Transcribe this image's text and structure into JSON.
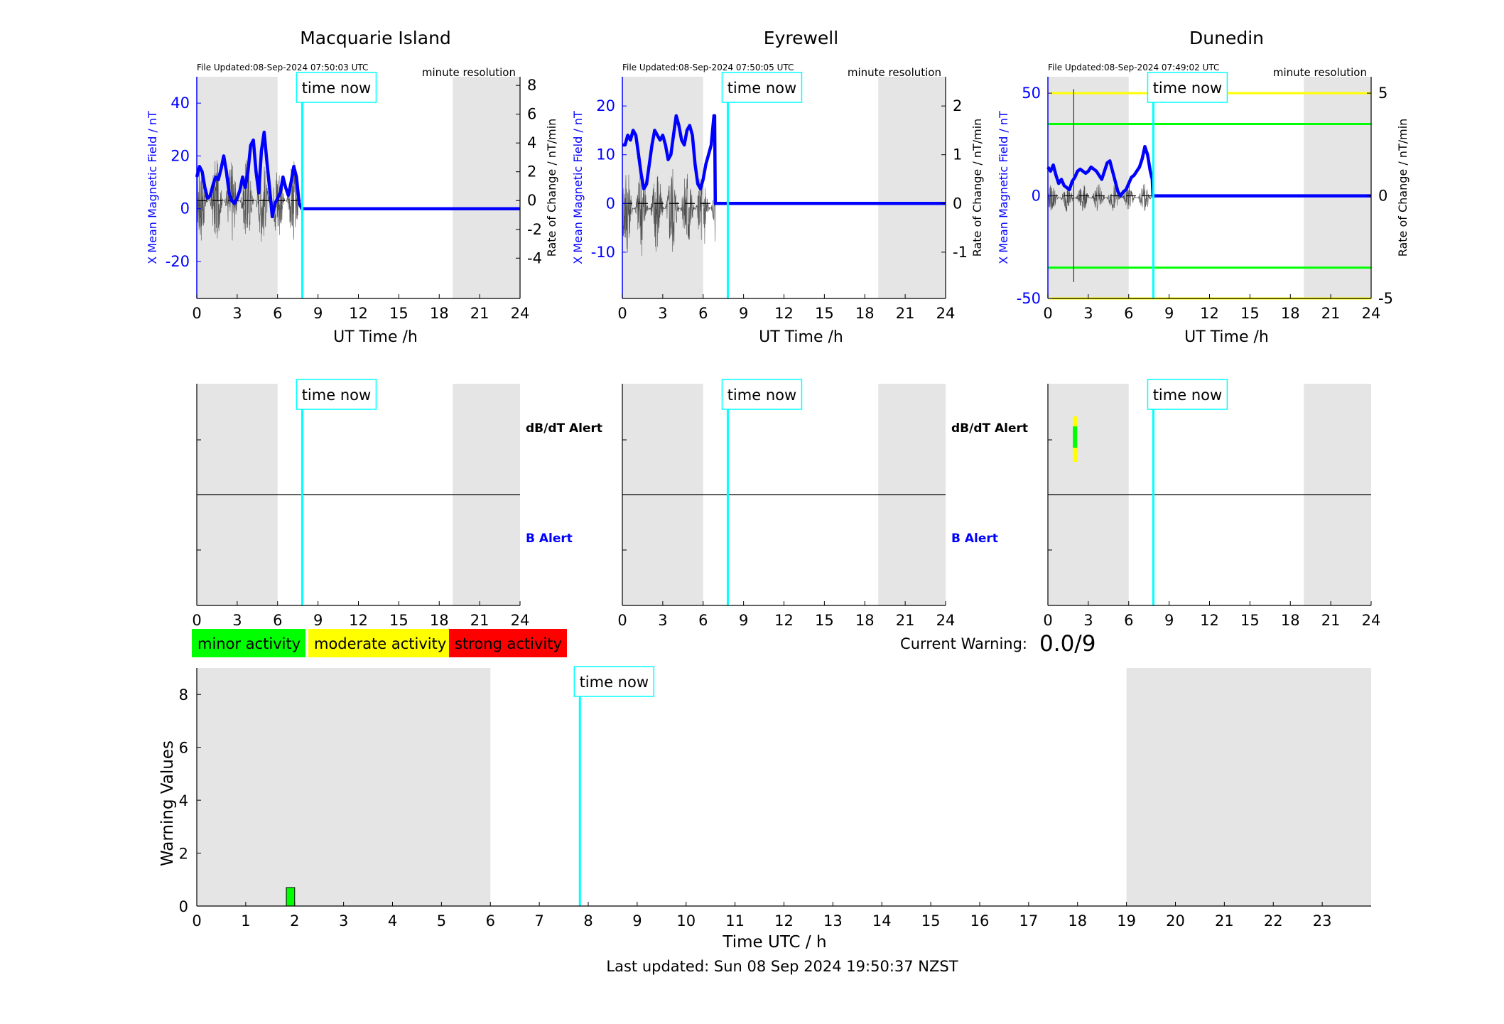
{
  "colors": {
    "night_shading": "#e5e5e5",
    "time_now_line": "#00ffff",
    "magnetic_field_line": "#0000ff",
    "rate_of_change_line": "#000000",
    "minor": "#00ff00",
    "moderate": "#ffff00",
    "strong": "#ff0000"
  },
  "labels": {
    "time_now": "time now",
    "resolution": "minute resolution",
    "x_axis_station": "UT Time /h",
    "y_left": "X Mean Magnetic Field / nT",
    "y_right": "Rate of Change / nT/min",
    "dbdt_alert": "dB/dT Alert",
    "b_alert": "B Alert"
  },
  "stations": [
    {
      "name": "Macquarie Island",
      "file_updated": "File Updated:08-Sep-2024 07:50:03 UTC",
      "show_alert_labels": true
    },
    {
      "name": "Eyrewell",
      "file_updated": "File Updated:08-Sep-2024 07:50:05 UTC",
      "show_alert_labels": true
    },
    {
      "name": "Dunedin",
      "file_updated": "File Updated:08-Sep-2024 07:49:02 UTC",
      "show_alert_labels": false
    }
  ],
  "legend": {
    "minor": "minor activity",
    "moderate": "moderate activity",
    "strong": "strong activity"
  },
  "current_warning": {
    "label": "Current Warning:",
    "value": "0.0/9"
  },
  "footer": {
    "last_updated": "Last updated: Sun 08 Sep 2024 19:50:37 NZST"
  },
  "chart_data": [
    {
      "type": "line",
      "title": "Macquarie Island",
      "xlabel": "UT Time /h",
      "ylabel": "X Mean Magnetic Field / nT",
      "ylabel_right": "Rate of Change / nT/min",
      "xlim": [
        0,
        24
      ],
      "ylim": [
        -34,
        50
      ],
      "ylim_right": [
        -6.8,
        8.6
      ],
      "x_ticks": [
        0,
        3,
        6,
        9,
        12,
        15,
        18,
        21,
        24
      ],
      "y_ticks": [
        -20,
        0,
        20,
        40
      ],
      "y_ticks_right": [
        -4,
        -2,
        0,
        2,
        4,
        6,
        8
      ],
      "time_now": 7.83,
      "night_bands": [
        [
          0,
          6
        ],
        [
          19,
          24
        ]
      ],
      "series": [
        {
          "name": "X Mean Magnetic Field / nT",
          "x": [
            0,
            0.2,
            0.4,
            0.6,
            0.8,
            1.0,
            1.2,
            1.4,
            1.6,
            1.8,
            2.0,
            2.2,
            2.4,
            2.6,
            2.8,
            3.0,
            3.2,
            3.4,
            3.6,
            3.8,
            4.0,
            4.2,
            4.4,
            4.6,
            4.8,
            5.0,
            5.2,
            5.4,
            5.6,
            5.8,
            6.0,
            6.2,
            6.4,
            6.6,
            6.8,
            7.0,
            7.2,
            7.4,
            7.6,
            7.8,
            7.85,
            24
          ],
          "y": [
            12,
            16,
            14,
            8,
            4,
            5,
            9,
            12,
            11,
            15,
            20,
            14,
            6,
            3,
            2,
            4,
            7,
            12,
            8,
            14,
            24,
            26,
            14,
            6,
            22,
            29,
            18,
            8,
            -3,
            2,
            4,
            6,
            12,
            8,
            5,
            10,
            16,
            12,
            2,
            0,
            0,
            0
          ]
        },
        {
          "name": "Rate of Change / nT/min",
          "x_range": [
            0,
            7.8
          ],
          "y_min": -3.0,
          "y_max": 3.0,
          "samples": 470
        }
      ]
    },
    {
      "type": "line",
      "title": "Eyrewell",
      "xlabel": "UT Time /h",
      "ylabel": "X Mean Magnetic Field / nT",
      "ylabel_right": "Rate of Change / nT/min",
      "xlim": [
        0,
        24
      ],
      "ylim": [
        -19.5,
        26
      ],
      "ylim_right": [
        -1.95,
        2.6
      ],
      "x_ticks": [
        0,
        3,
        6,
        9,
        12,
        15,
        18,
        21,
        24
      ],
      "y_ticks": [
        -10,
        0,
        10,
        20
      ],
      "y_ticks_right": [
        -1,
        0,
        1,
        2
      ],
      "time_now": 7.83,
      "night_bands": [
        [
          0,
          6
        ],
        [
          19,
          24
        ]
      ],
      "series": [
        {
          "name": "X Mean Magnetic Field / nT",
          "x": [
            0,
            0.2,
            0.4,
            0.6,
            0.8,
            1.0,
            1.2,
            1.4,
            1.6,
            1.8,
            2.0,
            2.2,
            2.4,
            2.6,
            2.8,
            3.0,
            3.2,
            3.4,
            3.6,
            3.8,
            4.0,
            4.2,
            4.4,
            4.6,
            4.8,
            5.0,
            5.2,
            5.4,
            5.6,
            5.8,
            6.0,
            6.2,
            6.4,
            6.6,
            6.8,
            6.85,
            6.9,
            24
          ],
          "y": [
            12,
            12,
            14,
            13,
            15,
            14,
            10,
            6,
            3,
            4,
            8,
            12,
            15,
            14,
            13,
            14,
            12,
            9,
            10,
            14,
            18,
            16,
            13,
            12,
            15,
            16,
            14,
            8,
            4,
            3,
            5,
            8,
            10,
            12,
            18,
            18,
            0,
            0
          ]
        },
        {
          "name": "Rate of Change / nT/min",
          "x_range": [
            0,
            6.9
          ],
          "y_min": -1.1,
          "y_max": 0.9,
          "samples": 420
        }
      ]
    },
    {
      "type": "line",
      "title": "Dunedin",
      "xlabel": "UT Time /h",
      "ylabel": "X Mean Magnetic Field / nT",
      "ylabel_right": "Rate of Change / nT/min",
      "xlim": [
        0,
        24
      ],
      "ylim": [
        -50,
        58
      ],
      "ylim_right": [
        -5,
        5.8
      ],
      "x_ticks": [
        0,
        3,
        6,
        9,
        12,
        15,
        18,
        21,
        24
      ],
      "y_ticks": [
        -50,
        0,
        50
      ],
      "y_ticks_right": [
        -5,
        0,
        5
      ],
      "time_now": 7.83,
      "night_bands": [
        [
          0,
          6
        ],
        [
          19,
          24
        ]
      ],
      "threshold_lines": [
        {
          "color": "#ffff00",
          "y": 50
        },
        {
          "color": "#00ff00",
          "y": 35
        },
        {
          "color": "#00ff00",
          "y": -35
        },
        {
          "color": "#ffff00",
          "y": -50
        }
      ],
      "series": [
        {
          "name": "X Mean Magnetic Field / nT",
          "x": [
            0,
            0.2,
            0.4,
            0.6,
            0.8,
            1.0,
            1.2,
            1.4,
            1.6,
            1.8,
            2.0,
            2.2,
            2.4,
            2.6,
            2.8,
            3.0,
            3.2,
            3.4,
            3.6,
            3.8,
            4.0,
            4.2,
            4.4,
            4.6,
            4.8,
            5.0,
            5.2,
            5.4,
            5.6,
            5.8,
            6.0,
            6.2,
            6.4,
            6.6,
            6.8,
            7.0,
            7.2,
            7.4,
            7.6,
            7.75,
            7.8,
            24
          ],
          "y": [
            14,
            12,
            15,
            10,
            6,
            8,
            5,
            4,
            3,
            7,
            9,
            12,
            13,
            12,
            11,
            12,
            14,
            13,
            12,
            10,
            8,
            12,
            16,
            17,
            12,
            7,
            2,
            0,
            2,
            3,
            6,
            9,
            10,
            12,
            14,
            18,
            24,
            20,
            12,
            8,
            0,
            0
          ]
        },
        {
          "name": "Rate of Change / nT/min",
          "x_range": [
            0,
            7.8
          ],
          "y_min": -0.8,
          "y_max": 0.6,
          "samples": 470,
          "spike": {
            "x": 1.92,
            "y_min": -4.2,
            "y_max": 5.2
          }
        }
      ]
    },
    {
      "type": "alert_strip",
      "stations": [
        "Macquarie Island",
        "Eyrewell",
        "Dunedin"
      ],
      "xlim": [
        0,
        24
      ],
      "x_ticks": [
        0,
        3,
        6,
        9,
        12,
        15,
        18,
        21,
        24
      ],
      "time_now": 7.83,
      "night_bands": [
        [
          0,
          6
        ],
        [
          19,
          24
        ]
      ],
      "rows": [
        "dB/dT Alert",
        "B Alert"
      ],
      "events": [
        {
          "station": "Dunedin",
          "row": "dB/dT Alert",
          "x_start": 1.8,
          "x_end": 2.1,
          "levels": [
            "moderate",
            "minor",
            "moderate"
          ]
        }
      ]
    },
    {
      "type": "bar",
      "xlabel": "Time UTC / h",
      "ylabel": "Warning Values",
      "xlim": [
        0,
        24
      ],
      "ylim": [
        0,
        9
      ],
      "x_ticks": [
        0,
        1,
        2,
        3,
        4,
        5,
        6,
        7,
        8,
        9,
        10,
        11,
        12,
        13,
        14,
        15,
        16,
        17,
        18,
        19,
        20,
        21,
        22,
        23
      ],
      "y_ticks": [
        0,
        2,
        4,
        6,
        8
      ],
      "time_now": 7.83,
      "night_bands": [
        [
          0,
          6
        ],
        [
          19,
          24
        ]
      ],
      "bars": [
        {
          "x_start": 1.83,
          "x_end": 2.0,
          "value": 0.7,
          "level": "minor"
        }
      ]
    }
  ]
}
